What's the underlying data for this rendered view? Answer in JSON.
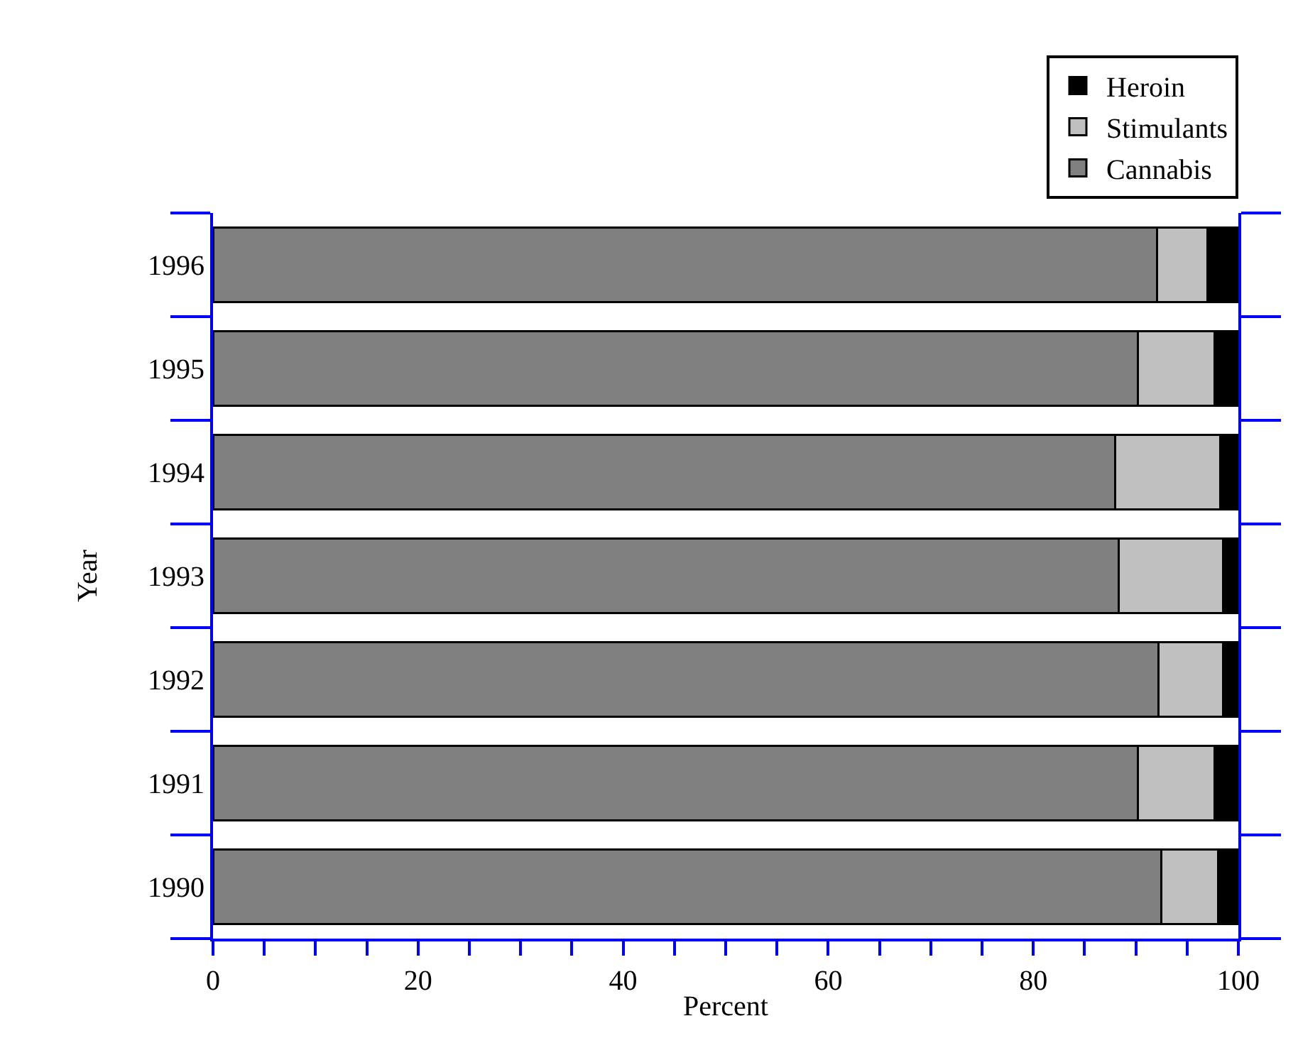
{
  "chart_data": {
    "type": "bar",
    "orientation": "horizontal",
    "stacked": true,
    "categories": [
      "1996",
      "1995",
      "1994",
      "1993",
      "1992",
      "1991",
      "1990"
    ],
    "series": [
      {
        "name": "Cannabis",
        "color": "#808080",
        "values": [
          92.1,
          90.2,
          88.0,
          88.3,
          92.2,
          90.2,
          92.5
        ]
      },
      {
        "name": "Stimulants",
        "color": "#c0c0c0",
        "values": [
          4.9,
          7.5,
          10.2,
          10.2,
          6.3,
          7.5,
          5.5
        ]
      },
      {
        "name": "Heroin",
        "color": "#000000",
        "values": [
          3.0,
          2.3,
          1.8,
          1.5,
          1.5,
          2.3,
          2.0
        ]
      }
    ],
    "xlabel": "Percent",
    "ylabel": "Year",
    "xlim": [
      0,
      100
    ],
    "xticks": [
      0,
      {
        "value": 5,
        "label": null
      },
      {
        "value": 10,
        "label": null
      },
      {
        "value": 15,
        "label": null
      },
      20,
      {
        "value": 25,
        "label": null
      },
      {
        "value": 30,
        "label": null
      },
      {
        "value": 35,
        "label": null
      },
      40,
      {
        "value": 45,
        "label": null
      },
      {
        "value": 50,
        "label": null
      },
      {
        "value": 55,
        "label": null
      },
      60,
      {
        "value": 65,
        "label": null
      },
      {
        "value": 70,
        "label": null
      },
      {
        "value": 75,
        "label": null
      },
      80,
      {
        "value": 85,
        "label": null
      },
      {
        "value": 90,
        "label": null
      },
      {
        "value": 95,
        "label": null
      },
      100
    ],
    "legend": "top right"
  }
}
